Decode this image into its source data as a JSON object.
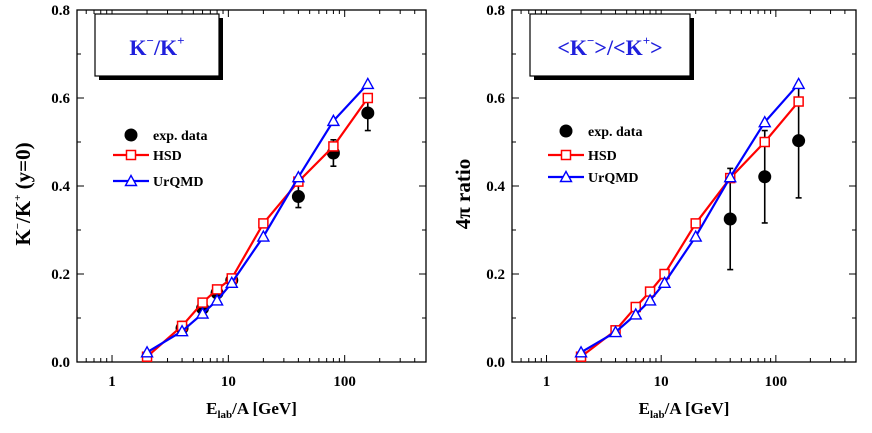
{
  "chart_data": [
    {
      "type": "line",
      "panel": "left",
      "title_box": {
        "main_a": "K",
        "sup_a": "−",
        "slash": "/K",
        "sup_b": "+"
      },
      "ylabel": {
        "main": "K",
        "sup1": "−",
        "mid": "/K",
        "sup2": "+",
        "tail": " (y=0)"
      },
      "xlabel": {
        "main": "E",
        "sub": "lab",
        "tail": "/A [GeV]"
      },
      "x_scale": "log",
      "xlim": [
        0.5,
        500
      ],
      "ylim": [
        0.0,
        0.8
      ],
      "x_ticks": [
        {
          "v": 1,
          "label": "1"
        },
        {
          "v": 10,
          "label": "10"
        },
        {
          "v": 100,
          "label": "100"
        }
      ],
      "y_ticks": [
        {
          "v": 0.0,
          "label": "0.0"
        },
        {
          "v": 0.2,
          "label": "0.2"
        },
        {
          "v": 0.4,
          "label": "0.4"
        },
        {
          "v": 0.6,
          "label": "0.6"
        },
        {
          "v": 0.8,
          "label": "0.8"
        }
      ],
      "legend": [
        "exp. data",
        "HSD",
        "UrQMD"
      ],
      "series": [
        {
          "name": "exp. data",
          "style": "points",
          "color": "#000000",
          "x": [
            4,
            6,
            8,
            10.7,
            40,
            80,
            158
          ],
          "y": [
            0.077,
            0.122,
            0.157,
            0.186,
            0.376,
            0.475,
            0.566
          ],
          "err": [
            0.015,
            0.015,
            0.015,
            0.013,
            0.025,
            0.03,
            0.04
          ]
        },
        {
          "name": "HSD",
          "style": "line-square",
          "color": "#ff0000",
          "x": [
            2,
            4,
            6,
            8,
            10.7,
            20,
            40,
            80,
            158
          ],
          "y": [
            0.012,
            0.082,
            0.135,
            0.165,
            0.19,
            0.315,
            0.41,
            0.49,
            0.6
          ]
        },
        {
          "name": "UrQMD",
          "style": "line-triangle",
          "color": "#0000ff",
          "x": [
            2,
            4,
            6,
            8,
            10.7,
            20,
            40,
            80,
            158
          ],
          "y": [
            0.022,
            0.07,
            0.11,
            0.14,
            0.18,
            0.285,
            0.42,
            0.548,
            0.632
          ]
        }
      ]
    },
    {
      "type": "line",
      "panel": "right",
      "title_box": {
        "main_a": "<K",
        "sup_a": "−",
        "slash": ">/<K",
        "sup_b": "+",
        "tail": ">"
      },
      "ylabel": {
        "main": "4π ratio"
      },
      "xlabel": {
        "main": "E",
        "sub": "lab",
        "tail": "/A [GeV]"
      },
      "x_scale": "log",
      "xlim": [
        0.5,
        500
      ],
      "ylim": [
        0.0,
        0.8
      ],
      "x_ticks": [
        {
          "v": 1,
          "label": "1"
        },
        {
          "v": 10,
          "label": "10"
        },
        {
          "v": 100,
          "label": "100"
        }
      ],
      "y_ticks": [
        {
          "v": 0.0,
          "label": "0.0"
        },
        {
          "v": 0.2,
          "label": "0.2"
        },
        {
          "v": 0.4,
          "label": "0.4"
        },
        {
          "v": 0.6,
          "label": "0.6"
        },
        {
          "v": 0.8,
          "label": "0.8"
        }
      ],
      "legend": [
        "exp. data",
        "HSD",
        "UrQMD"
      ],
      "series": [
        {
          "name": "exp. data",
          "style": "points",
          "color": "#000000",
          "x": [
            40,
            80,
            158
          ],
          "y": [
            0.325,
            0.421,
            0.503
          ],
          "err": [
            0.115,
            0.105,
            0.13
          ]
        },
        {
          "name": "HSD",
          "style": "line-square",
          "color": "#ff0000",
          "x": [
            2,
            4,
            6,
            8,
            10.7,
            20,
            40,
            80,
            158
          ],
          "y": [
            0.012,
            0.072,
            0.125,
            0.16,
            0.2,
            0.315,
            0.418,
            0.5,
            0.592
          ]
        },
        {
          "name": "UrQMD",
          "style": "line-triangle",
          "color": "#0000ff",
          "x": [
            2,
            4,
            6,
            8,
            10.7,
            20,
            40,
            80,
            158
          ],
          "y": [
            0.022,
            0.068,
            0.108,
            0.14,
            0.18,
            0.285,
            0.42,
            0.545,
            0.632
          ]
        }
      ]
    }
  ]
}
